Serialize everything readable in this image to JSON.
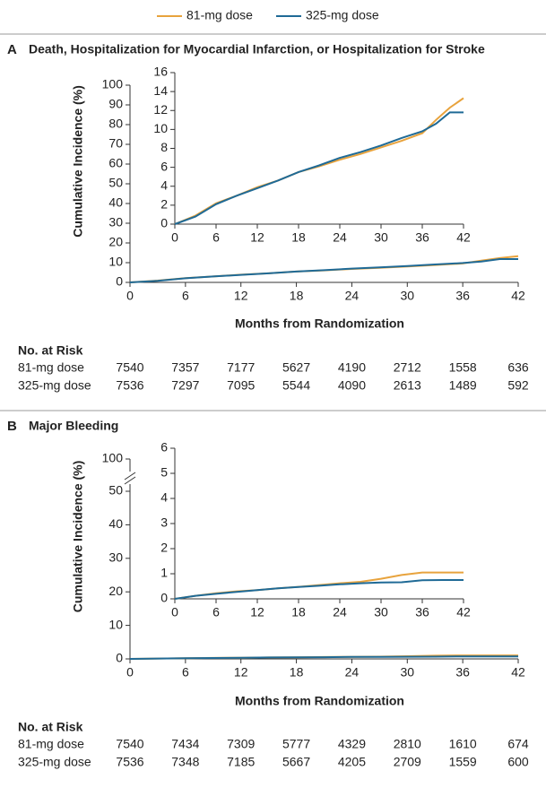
{
  "chart_data": [
    {
      "type": "line",
      "panel": "A",
      "title": "Death, Hospitalization for Myocardial Infarction, or Hospitalization for Stroke",
      "y_label": "Cumulative Incidence (%)",
      "x_label": "Months from Randomization",
      "x": [
        0,
        3,
        6,
        9,
        12,
        15,
        18,
        21,
        24,
        27,
        30,
        33,
        36,
        38,
        40,
        42
      ],
      "series": [
        {
          "name": "81-mg dose",
          "color": "#e8a33d",
          "values": [
            0,
            0.9,
            2.2,
            3.0,
            3.9,
            4.6,
            5.5,
            6.1,
            6.8,
            7.4,
            8.1,
            8.8,
            9.6,
            11.0,
            12.3,
            13.3
          ]
        },
        {
          "name": "325-mg dose",
          "color": "#1f6a96",
          "values": [
            0,
            0.8,
            2.1,
            3.0,
            3.8,
            4.6,
            5.5,
            6.2,
            7.0,
            7.6,
            8.3,
            9.1,
            9.8,
            10.6,
            11.8,
            11.8
          ]
        }
      ],
      "xlim": [
        0,
        42
      ],
      "xticks": [
        0,
        6,
        12,
        18,
        24,
        30,
        36,
        42
      ],
      "ylim": [
        0,
        100
      ],
      "yticks": [
        0,
        10,
        20,
        30,
        40,
        50,
        60,
        70,
        80,
        90,
        100
      ],
      "inset": {
        "xlim": [
          0,
          42
        ],
        "xticks": [
          0,
          6,
          12,
          18,
          24,
          30,
          36,
          42
        ],
        "ylim": [
          0,
          16
        ],
        "yticks": [
          0,
          2,
          4,
          6,
          8,
          10,
          12,
          14,
          16
        ]
      },
      "risk_table": {
        "title": "No. at Risk",
        "rows": [
          {
            "name": "81-mg dose",
            "values": [
              7540,
              7357,
              7177,
              5627,
              4190,
              2712,
              1558,
              636
            ]
          },
          {
            "name": "325-mg dose",
            "values": [
              7536,
              7297,
              7095,
              5544,
              4090,
              2613,
              1489,
              592
            ]
          }
        ]
      }
    },
    {
      "type": "line",
      "panel": "B",
      "title": "Major Bleeding",
      "y_label": "Cumulative Incidence (%)",
      "x_label": "Months from Randomization",
      "x": [
        0,
        3,
        6,
        9,
        12,
        15,
        18,
        21,
        24,
        27,
        30,
        33,
        36,
        39,
        42
      ],
      "series": [
        {
          "name": "81-mg dose",
          "color": "#e8a33d",
          "values": [
            0,
            0.12,
            0.22,
            0.3,
            0.35,
            0.42,
            0.48,
            0.55,
            0.62,
            0.68,
            0.8,
            0.95,
            1.05,
            1.05,
            1.05
          ]
        },
        {
          "name": "325-mg dose",
          "color": "#1f6a96",
          "values": [
            0,
            0.12,
            0.2,
            0.28,
            0.35,
            0.42,
            0.47,
            0.52,
            0.58,
            0.62,
            0.65,
            0.66,
            0.74,
            0.75,
            0.75
          ]
        }
      ],
      "xlim": [
        0,
        42
      ],
      "xticks": [
        0,
        6,
        12,
        18,
        24,
        30,
        36,
        42
      ],
      "ylim": [
        0,
        100
      ],
      "yticks": [
        0,
        10,
        20,
        30,
        40,
        50,
        100
      ],
      "axis_break": [
        50,
        100
      ],
      "inset": {
        "xlim": [
          0,
          42
        ],
        "xticks": [
          0,
          6,
          12,
          18,
          24,
          30,
          36,
          42
        ],
        "ylim": [
          0,
          6
        ],
        "yticks": [
          0,
          1,
          2,
          3,
          4,
          5,
          6
        ]
      },
      "risk_table": {
        "title": "No. at Risk",
        "rows": [
          {
            "name": "81-mg dose",
            "values": [
              7540,
              7434,
              7309,
              5777,
              4329,
              2810,
              1610,
              674
            ]
          },
          {
            "name": "325-mg dose",
            "values": [
              7536,
              7348,
              7185,
              5667,
              4205,
              2709,
              1559,
              600
            ]
          }
        ]
      }
    }
  ]
}
